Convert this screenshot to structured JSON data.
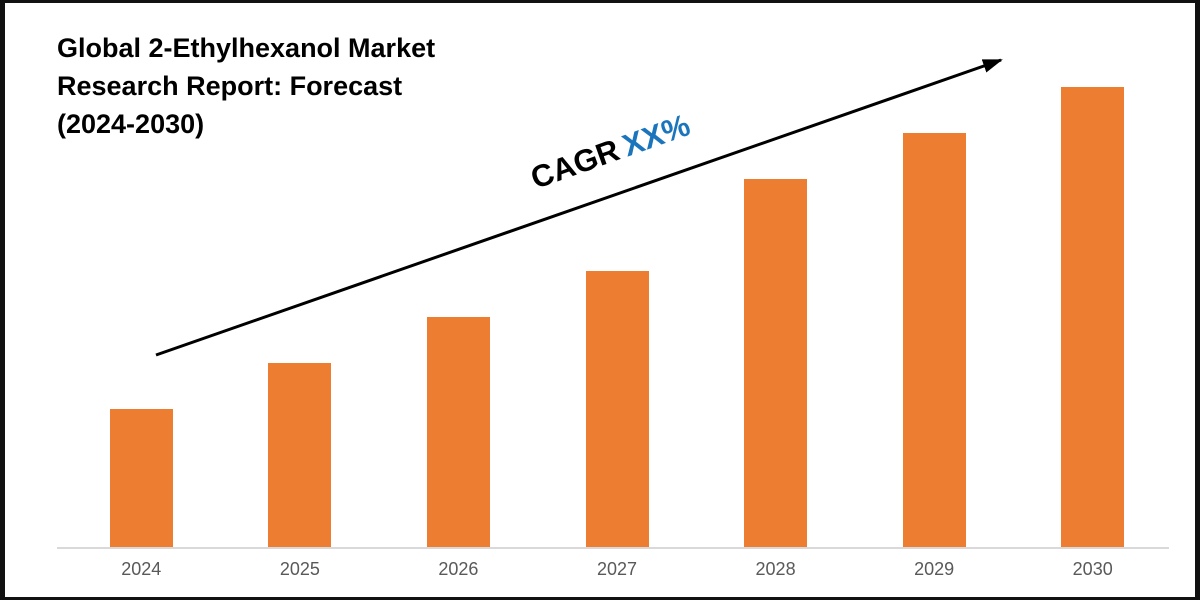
{
  "title": {
    "lines": [
      "Global 2-Ethylhexanol Market",
      "Research Report: Forecast",
      "(2024-2030)"
    ]
  },
  "annotation": {
    "cagr_label": "CAGR",
    "cagr_value": "XX%",
    "label_color": "#000000",
    "value_color": "#1B75BC"
  },
  "chart_data": {
    "type": "bar",
    "title": "Global 2-Ethylhexanol Market Research Report: Forecast (2024-2030)",
    "categories": [
      "2024",
      "2025",
      "2026",
      "2027",
      "2028",
      "2029",
      "2030"
    ],
    "values": [
      30,
      40,
      50,
      60,
      80,
      90,
      100
    ],
    "values_note": "relative index estimated from bar heights; no y-axis shown",
    "xlabel": "",
    "ylabel": "",
    "ylim": [
      0,
      100
    ],
    "grid": false,
    "legend": "none",
    "bar_color": "#ED7D31",
    "axis_line_color": "#D9D9D9",
    "tick_label_color": "#595959",
    "trend_arrow": true,
    "arrow_color": "#000000"
  }
}
